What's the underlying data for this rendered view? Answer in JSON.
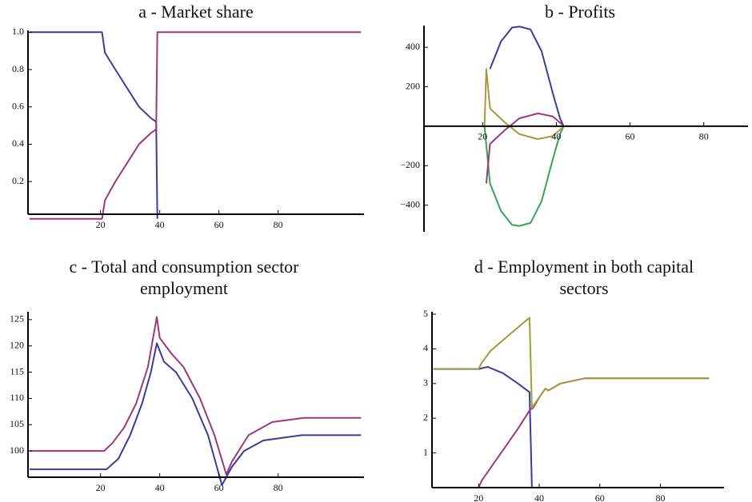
{
  "chart_data": [
    {
      "type": "line",
      "title": "a - Market share",
      "xlim": [
        -4.5,
        109
      ],
      "ylim": [
        0.025,
        1.01
      ],
      "xticks": [
        20,
        40,
        60,
        80
      ],
      "yticks": [
        0.2,
        0.4,
        0.6,
        0.8,
        {
          "value": 1,
          "label": "1.0"
        }
      ],
      "series": [
        {
          "color": "#3b3b9e",
          "x": [
            -4,
            20.5,
            21.5,
            25,
            29,
            33,
            37,
            38.8,
            39.2
          ],
          "values": [
            1,
            1,
            0.89,
            0.8,
            0.7,
            0.6,
            0.54,
            0.52,
            0
          ]
        },
        {
          "color": "#9b3a78",
          "x": [
            -4,
            20.5,
            21.5,
            25,
            29,
            33,
            37,
            38.8,
            39.2,
            108
          ],
          "values": [
            0,
            0,
            0.1,
            0.2,
            0.3,
            0.4,
            0.46,
            0.48,
            1,
            1
          ]
        }
      ]
    },
    {
      "type": "line",
      "title": "b - Profits",
      "xlim": [
        4.1,
        92
      ],
      "ylim": [
        -535,
        510
      ],
      "xticks": [
        20,
        40,
        60,
        80
      ],
      "yticks": [
        {
          "value": -400,
          "label": "−400"
        },
        {
          "value": -200,
          "label": "−200"
        },
        200,
        400
      ],
      "series": [
        {
          "color": "#3b3b9e",
          "x": [
            22,
            25,
            28,
            30,
            33,
            36,
            39,
            41,
            42
          ],
          "values": [
            290,
            430,
            500,
            505,
            490,
            380,
            170,
            40,
            0
          ]
        },
        {
          "color": "#3aa35a",
          "x": [
            20.5,
            22,
            25,
            28,
            30,
            33,
            36,
            39,
            41,
            42
          ],
          "values": [
            0,
            -290,
            -430,
            -500,
            -505,
            -490,
            -380,
            -170,
            -40,
            0
          ]
        },
        {
          "color": "#a39a3e",
          "x": [
            20.5,
            21,
            22,
            26,
            30,
            35,
            39,
            41.5,
            42
          ],
          "values": [
            0,
            290,
            90,
            20,
            -40,
            -65,
            -50,
            -10,
            0
          ]
        },
        {
          "color": "#9b3a78",
          "x": [
            21,
            22,
            26,
            30,
            35,
            39,
            41.5,
            42
          ],
          "values": [
            -290,
            -90,
            -20,
            40,
            65,
            50,
            10,
            0
          ]
        }
      ]
    },
    {
      "type": "line",
      "title": "c - Total and consumption sector employment",
      "xlim": [
        -4.5,
        109
      ],
      "ylim": [
        95,
        126.5
      ],
      "xticks": [
        20,
        40,
        60,
        80
      ],
      "yticks": [
        100,
        105,
        110,
        115,
        120,
        125
      ],
      "series": [
        {
          "color": "#3b3b9e",
          "x": [
            -4,
            19.8,
            22,
            26,
            30,
            34,
            37,
            39,
            41.4,
            45.5,
            51,
            56.3,
            61,
            64.4,
            68.5,
            75,
            88,
            108
          ],
          "values": [
            96.5,
            96.5,
            96.5,
            98.5,
            103,
            109,
            115,
            120.5,
            117,
            115,
            110,
            103,
            93.5,
            97,
            100,
            102,
            103,
            103
          ]
        },
        {
          "color": "#9b3a78",
          "x": [
            -4,
            21.2,
            24,
            28,
            32,
            36,
            39,
            40,
            44,
            48,
            53.6,
            58.5,
            62.5,
            64.4,
            70,
            78,
            88.7,
            108
          ],
          "values": [
            100,
            100,
            101.5,
            104.5,
            109,
            116,
            125.5,
            121.5,
            118.5,
            116,
            110,
            103,
            95.5,
            98,
            103,
            105.5,
            106.3,
            106.3
          ]
        }
      ]
    },
    {
      "type": "line",
      "title": "d - Employment in both capital sectors",
      "xlim": [
        4.6,
        101
      ],
      "ylim": [
        0,
        5.07
      ],
      "xticks": [
        20,
        40,
        60,
        80
      ],
      "yticks": [
        1,
        2,
        3,
        4,
        5
      ],
      "series": [
        {
          "color": "#3b3b9e",
          "x": [
            5,
            20,
            23,
            28,
            33,
            36.8,
            37.6
          ],
          "values": [
            3.42,
            3.42,
            3.48,
            3.3,
            3.0,
            2.75,
            0
          ]
        },
        {
          "color": "#9b3a78",
          "x": [
            20,
            21,
            25,
            29,
            33,
            37,
            38,
            40,
            42,
            43,
            47,
            55,
            96
          ],
          "values": [
            0,
            0.2,
            0.7,
            1.2,
            1.7,
            2.25,
            2.3,
            2.6,
            2.85,
            2.8,
            3.0,
            3.15,
            3.15
          ]
        },
        {
          "color": "#a39a3e",
          "x": [
            5,
            20,
            21,
            24,
            30,
            36.8,
            37.6,
            40,
            42,
            43,
            47,
            55,
            96
          ],
          "values": [
            3.42,
            3.42,
            3.6,
            3.95,
            4.4,
            4.9,
            2.3,
            2.6,
            2.85,
            2.8,
            3.0,
            3.15,
            3.15
          ]
        }
      ]
    }
  ]
}
